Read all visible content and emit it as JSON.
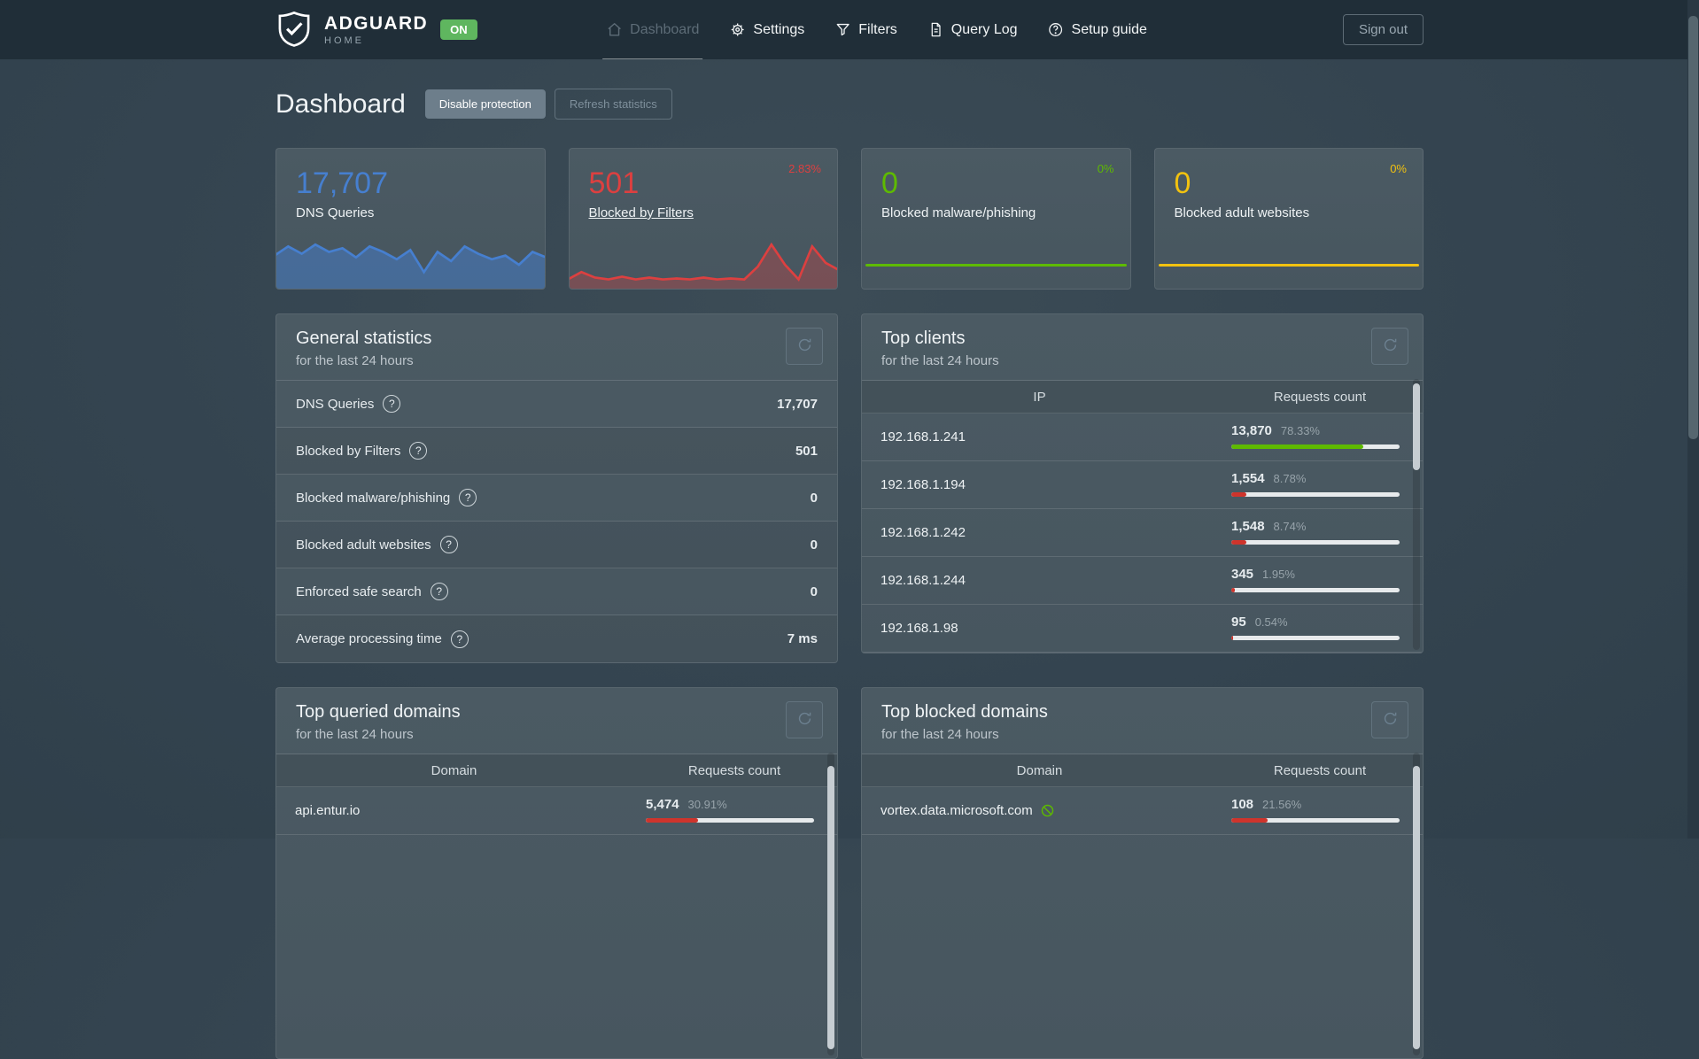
{
  "nav": {
    "brand": {
      "name": "ADGUARD",
      "sub": "HOME",
      "status": "ON"
    },
    "items": [
      {
        "label": "Dashboard",
        "icon": "home-icon",
        "active": true
      },
      {
        "label": "Settings",
        "icon": "gear-icon",
        "active": false
      },
      {
        "label": "Filters",
        "icon": "funnel-icon",
        "active": false
      },
      {
        "label": "Query Log",
        "icon": "document-icon",
        "active": false
      },
      {
        "label": "Setup guide",
        "icon": "question-circle-icon",
        "active": false
      }
    ],
    "signout": "Sign out"
  },
  "page": {
    "title": "Dashboard",
    "disable_protection": "Disable protection",
    "refresh_statistics": "Refresh statistics"
  },
  "cards": [
    {
      "value": "17,707",
      "label": "DNS Queries",
      "color": "#467fcf",
      "trend": "",
      "link": false,
      "chart": "area",
      "spark": "dns_queries"
    },
    {
      "value": "501",
      "label": "Blocked by Filters",
      "color": "#dc4040",
      "trend": "2.83%",
      "link": true,
      "chart": "area",
      "spark": "blocked"
    },
    {
      "value": "0",
      "label": "Blocked malware/phishing",
      "color": "#5eba00",
      "trend": "0%",
      "link": false,
      "chart": "flat"
    },
    {
      "value": "0",
      "label": "Blocked adult websites",
      "color": "#f2c20f",
      "trend": "0%",
      "link": false,
      "chart": "flat"
    }
  ],
  "sparklines": {
    "dns_queries": [
      18,
      8,
      16,
      6,
      14,
      10,
      20,
      8,
      14,
      22,
      12,
      36,
      14,
      24,
      8,
      16,
      22,
      18,
      28,
      14,
      20
    ],
    "blocked": [
      44,
      36,
      42,
      44,
      41,
      44,
      42,
      44,
      43,
      44,
      42,
      44,
      43,
      44,
      30,
      6,
      28,
      44,
      8,
      26,
      34
    ]
  },
  "general_stats": {
    "title": "General statistics",
    "subtitle": "for the last 24 hours",
    "rows": [
      {
        "label": "DNS Queries",
        "value": "17,707"
      },
      {
        "label": "Blocked by Filters",
        "value": "501"
      },
      {
        "label": "Blocked malware/phishing",
        "value": "0"
      },
      {
        "label": "Blocked adult websites",
        "value": "0"
      },
      {
        "label": "Enforced safe search",
        "value": "0"
      },
      {
        "label": "Average processing time",
        "value": "7 ms"
      }
    ]
  },
  "top_clients": {
    "title": "Top clients",
    "subtitle": "for the last 24 hours",
    "columns": [
      "IP",
      "Requests count"
    ],
    "rows": [
      {
        "name": "192.168.1.241",
        "count": "13,870",
        "percent": "78.33%",
        "bar": 78.33,
        "bar_color": "#5eba00"
      },
      {
        "name": "192.168.1.194",
        "count": "1,554",
        "percent": "8.78%",
        "bar": 8.78,
        "bar_color": "#cf342c"
      },
      {
        "name": "192.168.1.242",
        "count": "1,548",
        "percent": "8.74%",
        "bar": 8.74,
        "bar_color": "#cf342c"
      },
      {
        "name": "192.168.1.244",
        "count": "345",
        "percent": "1.95%",
        "bar": 1.95,
        "bar_color": "#cf342c"
      },
      {
        "name": "192.168.1.98",
        "count": "95",
        "percent": "0.54%",
        "bar": 0.54,
        "bar_color": "#cf342c"
      }
    ]
  },
  "top_queried": {
    "title": "Top queried domains",
    "subtitle": "for the last 24 hours",
    "columns": [
      "Domain",
      "Requests count"
    ],
    "rows": [
      {
        "name": "api.entur.io",
        "count": "5,474",
        "percent": "30.91%",
        "bar": 30.91,
        "bar_color": "#cf342c"
      }
    ]
  },
  "top_blocked": {
    "title": "Top blocked domains",
    "subtitle": "for the last 24 hours",
    "columns": [
      "Domain",
      "Requests count"
    ],
    "rows": [
      {
        "name": "vortex.data.microsoft.com",
        "icon": "blocked-icon",
        "icon_color": "#5eba00",
        "count": "108",
        "percent": "21.56%",
        "bar": 21.56,
        "bar_color": "#cf342c"
      }
    ]
  }
}
